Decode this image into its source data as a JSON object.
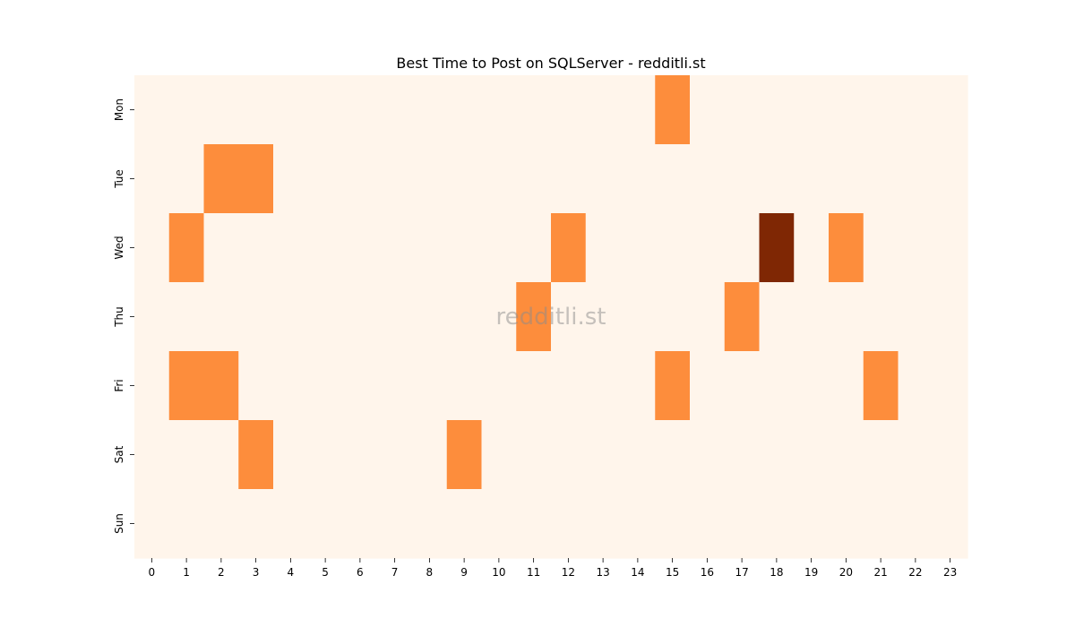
{
  "chart_data": {
    "type": "heatmap",
    "title": "Best Time to Post on SQLServer - redditli.st",
    "xlabel": "",
    "ylabel": "",
    "x": [
      "0",
      "1",
      "2",
      "3",
      "4",
      "5",
      "6",
      "7",
      "8",
      "9",
      "10",
      "11",
      "12",
      "13",
      "14",
      "15",
      "16",
      "17",
      "18",
      "19",
      "20",
      "21",
      "22",
      "23"
    ],
    "y": [
      "Mon",
      "Tue",
      "Wed",
      "Thu",
      "Fri",
      "Sat",
      "Sun"
    ],
    "values": [
      [
        0,
        0,
        0,
        0,
        0,
        0,
        0,
        0,
        0,
        0,
        0,
        0,
        0,
        0,
        0,
        1,
        0,
        0,
        0,
        0,
        0,
        0,
        0,
        0
      ],
      [
        0,
        0,
        1,
        1,
        0,
        0,
        0,
        0,
        0,
        0,
        0,
        0,
        0,
        0,
        0,
        0,
        0,
        0,
        0,
        0,
        0,
        0,
        0,
        0
      ],
      [
        0,
        1,
        0,
        0,
        0,
        0,
        0,
        0,
        0,
        0,
        0,
        0,
        1,
        0,
        0,
        0,
        0,
        0,
        2,
        0,
        1,
        0,
        0,
        0
      ],
      [
        0,
        0,
        0,
        0,
        0,
        0,
        0,
        0,
        0,
        0,
        0,
        1,
        0,
        0,
        0,
        0,
        0,
        1,
        0,
        0,
        0,
        0,
        0,
        0
      ],
      [
        0,
        1,
        1,
        0,
        0,
        0,
        0,
        0,
        0,
        0,
        0,
        0,
        0,
        0,
        0,
        1,
        0,
        0,
        0,
        0,
        0,
        1,
        0,
        0
      ],
      [
        0,
        0,
        0,
        1,
        0,
        0,
        0,
        0,
        0,
        1,
        0,
        0,
        0,
        0,
        0,
        0,
        0,
        0,
        0,
        0,
        0,
        0,
        0,
        0
      ],
      [
        0,
        0,
        0,
        0,
        0,
        0,
        0,
        0,
        0,
        0,
        0,
        0,
        0,
        0,
        0,
        0,
        0,
        0,
        0,
        0,
        0,
        0,
        0,
        0
      ]
    ],
    "colors": {
      "0": "#fff5eb",
      "1": "#fd8d3c",
      "2": "#7f2704"
    },
    "watermark": "redditli.st",
    "grid": false,
    "legend": "none"
  }
}
